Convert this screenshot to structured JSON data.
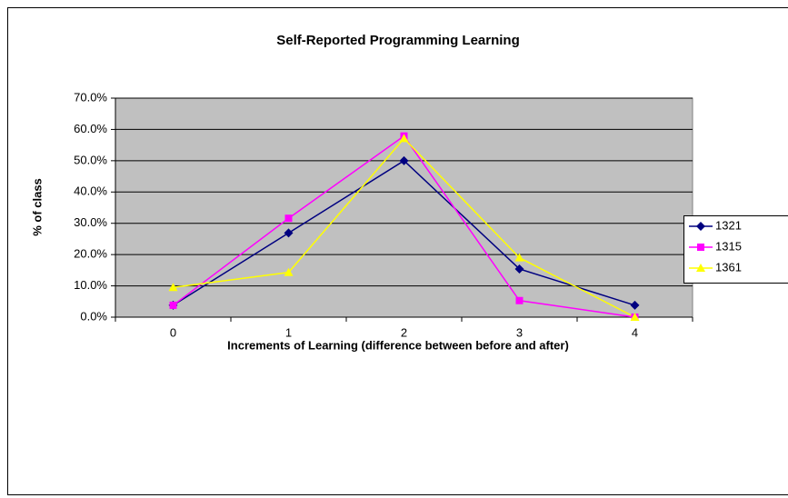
{
  "chart_data": {
    "type": "line",
    "title": "Self-Reported Programming Learning",
    "x_label": "Increments of Learning (difference between before and after)",
    "y_label": "% of class",
    "categories": [
      "0",
      "1",
      "2",
      "3",
      "4"
    ],
    "series": [
      {
        "name": "1321",
        "color": "#000080",
        "marker": "diamond",
        "values": [
          3.8,
          26.9,
          50.0,
          15.4,
          3.8
        ]
      },
      {
        "name": "1315",
        "color": "#ff00ff",
        "marker": "square",
        "values": [
          3.8,
          31.6,
          57.9,
          5.3,
          0.0
        ]
      },
      {
        "name": "1361",
        "color": "#ffff00",
        "marker": "triangle",
        "values": [
          9.5,
          14.3,
          57.1,
          19.0,
          0.0
        ]
      }
    ],
    "ylim": [
      0,
      70
    ],
    "yticks": [
      {
        "value": 0,
        "label": "0.0%"
      },
      {
        "value": 10,
        "label": "10.0%"
      },
      {
        "value": 20,
        "label": "20.0%"
      },
      {
        "value": 30,
        "label": "30.0%"
      },
      {
        "value": 40,
        "label": "40.0%"
      },
      {
        "value": 50,
        "label": "50.0%"
      },
      {
        "value": 60,
        "label": "60.0%"
      },
      {
        "value": 70,
        "label": "70.0%"
      }
    ],
    "grid": true,
    "plot_background": "#c0c0c0",
    "legend": "right"
  }
}
